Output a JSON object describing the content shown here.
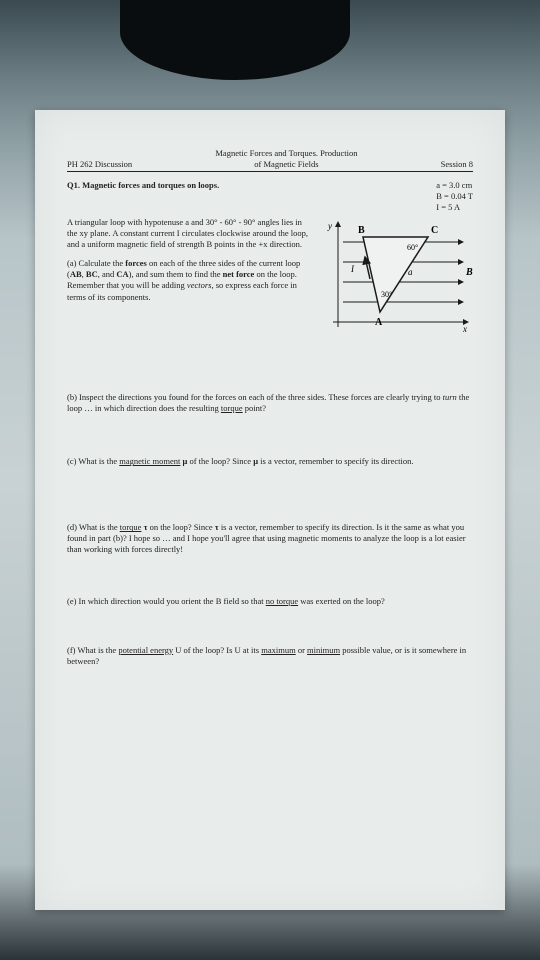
{
  "header": {
    "left": "PH 262 Discussion",
    "center_line1": "Magnetic Forces and Torques. Production",
    "center_line2": "of Magnetic Fields",
    "right": "Session 8"
  },
  "q1": {
    "title": "Q1. Magnetic forces and torques on loops.",
    "givens": {
      "a": "a = 3.0 cm",
      "B": "B = 0.04 T",
      "I": "I = 5 A"
    },
    "intro": "A triangular loop with hypotenuse a and 30° - 60° - 90° angles lies in the xy plane. A constant current I circulates clockwise around the loop, and a uniform magnetic field of strength B points in the +x direction.",
    "part_a": "(a) Calculate the <b>forces</b> on each of the three sides of the current loop (<b>AB</b>, <b>BC</b>, and <b>CA</b>), and sum them to find the <b>net force</b> on the loop. Remember that you will be adding <i>vectors</i>, so express each force in terms of its components."
  },
  "diagram": {
    "labels": {
      "B": "B",
      "C": "C",
      "A": "A",
      "I": "I",
      "a_side": "a",
      "B_field": "B",
      "x": "x",
      "y": "y",
      "ang60": "60°",
      "ang30": "30°"
    },
    "colors": {
      "stroke": "#1a1a1a",
      "fill": "none"
    }
  },
  "parts": {
    "b": "(b) Inspect the directions you found for the forces on each of the three sides. These forces are clearly trying to <i>turn</i> the loop … in which direction does the resulting <u>torque</u> point?",
    "c": "(c) What is the <u>magnetic moment</u> <b>μ</b> of the loop? Since <b>μ</b> is a vector, remember to specify its direction.",
    "d": "(d) What is the <u>torque</u> <b>τ</b> on the loop? Since <b>τ</b> is a vector, remember to specify its direction. Is it the same as what you found in part (b)? I hope so … and I hope you'll agree that using magnetic moments to analyze the loop is a lot easier than working with forces directly!",
    "e": "(e) In which direction would you orient the B field so that <u>no torque</u> was exerted on the loop?",
    "f": "(f) What is the <u>potential energy</u> U of the loop? Is U at its <u>maximum</u> or <u>minimum</u> possible value, or is it somewhere in between?"
  }
}
